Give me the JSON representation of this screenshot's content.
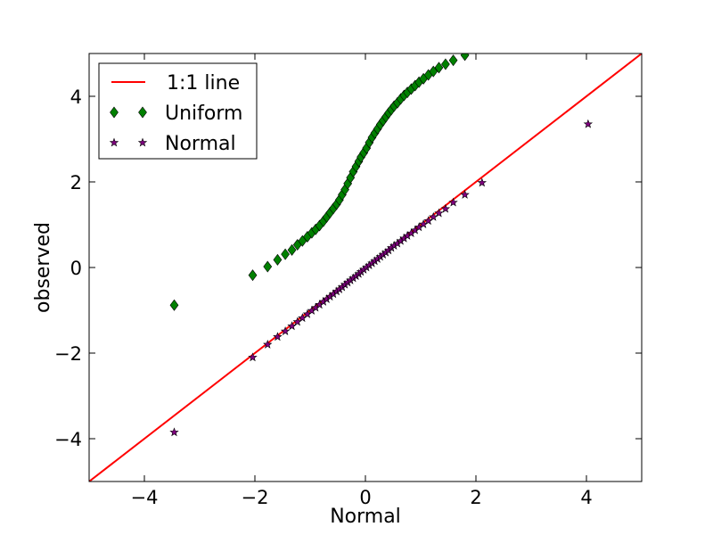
{
  "chart_data": {
    "type": "scatter",
    "title": "",
    "xlabel": "Normal",
    "ylabel": "observed",
    "xlim": [
      -5,
      5
    ],
    "ylim": [
      -5,
      5
    ],
    "x_ticks": [
      -4,
      -2,
      0,
      2,
      4
    ],
    "y_ticks": [
      -4,
      -2,
      0,
      2,
      4
    ],
    "x_tick_labels": [
      "−4",
      "−2",
      "0",
      "2",
      "4"
    ],
    "y_tick_labels": [
      "−4",
      "−2",
      "0",
      "2",
      "4"
    ],
    "grid": false,
    "legend_position": "top-left",
    "reference_line": {
      "name": "1:1 line",
      "color": "#ff0000",
      "points": [
        [
          -5,
          -5
        ],
        [
          5,
          5
        ]
      ]
    },
    "series": [
      {
        "name": "Uniform",
        "marker": "diamond",
        "color": "#008000",
        "x": [
          -3.46,
          -2.04,
          -1.77,
          -1.59,
          -1.45,
          -1.33,
          -1.23,
          -1.14,
          -1.05,
          -0.97,
          -0.9,
          -0.83,
          -0.76,
          -0.7,
          -0.64,
          -0.58,
          -0.52,
          -0.47,
          -0.42,
          -0.37,
          -0.32,
          -0.27,
          -0.22,
          -0.17,
          -0.12,
          -0.08,
          -0.03,
          0.02,
          0.07,
          0.12,
          0.17,
          0.22,
          0.27,
          0.32,
          0.37,
          0.42,
          0.47,
          0.52,
          0.58,
          0.64,
          0.7,
          0.76,
          0.83,
          0.9,
          0.97,
          1.05,
          1.14,
          1.23,
          1.33,
          1.45,
          1.59,
          1.8
        ],
        "y": [
          -0.88,
          -0.18,
          0.02,
          0.18,
          0.31,
          0.41,
          0.53,
          0.62,
          0.72,
          0.81,
          0.89,
          0.98,
          1.08,
          1.18,
          1.28,
          1.38,
          1.48,
          1.58,
          1.7,
          1.82,
          1.96,
          2.1,
          2.24,
          2.36,
          2.48,
          2.58,
          2.68,
          2.79,
          2.92,
          3.04,
          3.14,
          3.24,
          3.34,
          3.43,
          3.52,
          3.61,
          3.69,
          3.77,
          3.85,
          3.94,
          4.02,
          4.09,
          4.17,
          4.25,
          4.33,
          4.41,
          4.5,
          4.58,
          4.67,
          4.75,
          4.84,
          4.96
        ]
      },
      {
        "name": "Normal",
        "marker": "star",
        "color": "#800080",
        "x": [
          -3.46,
          -2.04,
          -1.77,
          -1.59,
          -1.45,
          -1.33,
          -1.23,
          -1.14,
          -1.05,
          -0.97,
          -0.9,
          -0.83,
          -0.76,
          -0.7,
          -0.64,
          -0.58,
          -0.52,
          -0.47,
          -0.42,
          -0.37,
          -0.32,
          -0.27,
          -0.22,
          -0.17,
          -0.12,
          -0.08,
          -0.03,
          0.02,
          0.07,
          0.12,
          0.17,
          0.22,
          0.27,
          0.32,
          0.37,
          0.42,
          0.47,
          0.52,
          0.58,
          0.64,
          0.7,
          0.76,
          0.83,
          0.9,
          0.97,
          1.05,
          1.14,
          1.23,
          1.33,
          1.45,
          1.59,
          1.8,
          2.11,
          4.03
        ],
        "y": [
          -3.85,
          -2.1,
          -1.8,
          -1.62,
          -1.49,
          -1.37,
          -1.27,
          -1.18,
          -1.09,
          -1.01,
          -0.94,
          -0.87,
          -0.8,
          -0.74,
          -0.68,
          -0.62,
          -0.56,
          -0.51,
          -0.46,
          -0.4,
          -0.35,
          -0.3,
          -0.25,
          -0.2,
          -0.15,
          -0.1,
          -0.05,
          0.0,
          0.05,
          0.1,
          0.15,
          0.2,
          0.25,
          0.3,
          0.35,
          0.4,
          0.46,
          0.51,
          0.56,
          0.62,
          0.68,
          0.74,
          0.8,
          0.87,
          0.94,
          1.01,
          1.09,
          1.18,
          1.27,
          1.37,
          1.52,
          1.7,
          1.98,
          3.35
        ]
      }
    ]
  }
}
